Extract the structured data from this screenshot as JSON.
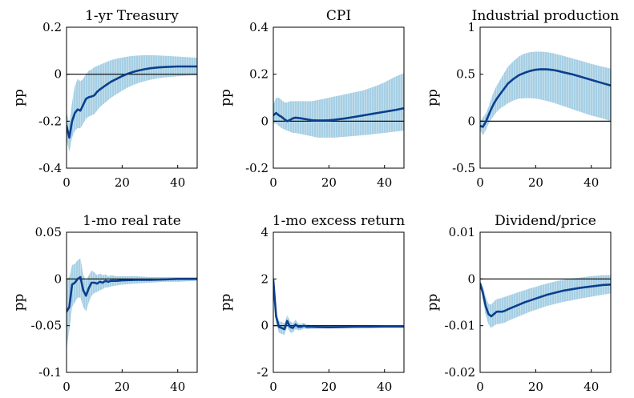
{
  "chart_data": [
    {
      "type": "line",
      "title": "1-yr Treasury",
      "ylabel": "pp",
      "xlim": [
        0,
        47
      ],
      "ylim": [
        -0.4,
        0.2
      ],
      "xticks": [
        0,
        20,
        40
      ],
      "xtick_labels": [
        "0",
        "20",
        "40"
      ],
      "yticks": [
        -0.4,
        -0.2,
        0,
        0.2
      ],
      "ytick_labels": [
        "-0.4",
        "-0.2",
        "0",
        "0.2"
      ],
      "zero_line": true,
      "series": [
        {
          "x": [
            0,
            1,
            2,
            3,
            4,
            5,
            6,
            7,
            8,
            9,
            10,
            11,
            12,
            14,
            16,
            18,
            20,
            22,
            24,
            26,
            28,
            30,
            33,
            36,
            40,
            44,
            47
          ],
          "values": [
            -0.22,
            -0.27,
            -0.2,
            -0.165,
            -0.15,
            -0.155,
            -0.13,
            -0.105,
            -0.098,
            -0.095,
            -0.09,
            -0.075,
            -0.065,
            -0.048,
            -0.032,
            -0.02,
            -0.008,
            0.002,
            0.01,
            0.016,
            0.021,
            0.025,
            0.029,
            0.031,
            0.033,
            0.033,
            0.033
          ],
          "lower": [
            -0.28,
            -0.33,
            -0.27,
            -0.24,
            -0.23,
            -0.23,
            -0.21,
            -0.19,
            -0.18,
            -0.175,
            -0.17,
            -0.155,
            -0.14,
            -0.12,
            -0.1,
            -0.085,
            -0.07,
            -0.057,
            -0.046,
            -0.037,
            -0.03,
            -0.024,
            -0.017,
            -0.013,
            -0.009,
            -0.006,
            -0.005
          ],
          "upper": [
            -0.16,
            -0.21,
            -0.12,
            -0.05,
            -0.02,
            -0.03,
            -0.02,
            0.0,
            0.015,
            0.02,
            0.03,
            0.035,
            0.04,
            0.05,
            0.06,
            0.066,
            0.071,
            0.075,
            0.078,
            0.08,
            0.081,
            0.081,
            0.08,
            0.078,
            0.075,
            0.072,
            0.07
          ]
        }
      ]
    },
    {
      "type": "line",
      "title": "CPI",
      "ylabel": "pp",
      "xlim": [
        0,
        47
      ],
      "ylim": [
        -0.2,
        0.4
      ],
      "xticks": [
        0,
        20,
        40
      ],
      "xtick_labels": [
        "0",
        "20",
        "40"
      ],
      "yticks": [
        -0.2,
        0,
        0.2,
        0.4
      ],
      "ytick_labels": [
        "-0.2",
        "0",
        "0.2",
        "0.4"
      ],
      "zero_line": true,
      "series": [
        {
          "x": [
            0,
            1,
            2,
            3,
            4,
            5,
            6,
            7,
            8,
            10,
            12,
            14,
            16,
            18,
            20,
            22,
            24,
            26,
            28,
            30,
            32,
            34,
            36,
            38,
            40,
            42,
            44,
            47
          ],
          "values": [
            0.025,
            0.035,
            0.025,
            0.018,
            0.008,
            0.0,
            0.005,
            0.012,
            0.015,
            0.012,
            0.008,
            0.004,
            0.003,
            0.003,
            0.004,
            0.006,
            0.009,
            0.012,
            0.016,
            0.02,
            0.024,
            0.028,
            0.032,
            0.036,
            0.04,
            0.044,
            0.048,
            0.055
          ],
          "lower": [
            -0.01,
            -0.01,
            -0.02,
            -0.03,
            -0.035,
            -0.04,
            -0.045,
            -0.05,
            -0.05,
            -0.055,
            -0.06,
            -0.065,
            -0.07,
            -0.07,
            -0.07,
            -0.07,
            -0.068,
            -0.066,
            -0.064,
            -0.062,
            -0.06,
            -0.058,
            -0.055,
            -0.052,
            -0.05,
            -0.047,
            -0.044,
            -0.04
          ],
          "upper": [
            0.07,
            0.1,
            0.1,
            0.09,
            0.08,
            0.08,
            0.085,
            0.085,
            0.085,
            0.085,
            0.085,
            0.085,
            0.09,
            0.095,
            0.1,
            0.105,
            0.11,
            0.115,
            0.12,
            0.125,
            0.13,
            0.138,
            0.146,
            0.155,
            0.165,
            0.178,
            0.19,
            0.205
          ]
        }
      ]
    },
    {
      "type": "line",
      "title": "Industrial production",
      "ylabel": "pp",
      "xlim": [
        0,
        47
      ],
      "ylim": [
        -0.5,
        1
      ],
      "xticks": [
        0,
        20,
        40
      ],
      "xtick_labels": [
        "0",
        "20",
        "40"
      ],
      "yticks": [
        -0.5,
        0,
        0.5,
        1
      ],
      "ytick_labels": [
        "-0.5",
        "0",
        "0.5",
        "1"
      ],
      "zero_line": true,
      "series": [
        {
          "x": [
            0,
            1,
            2,
            3,
            4,
            5,
            6,
            7,
            8,
            9,
            10,
            12,
            14,
            16,
            18,
            20,
            22,
            24,
            26,
            28,
            30,
            33,
            36,
            40,
            44,
            47
          ],
          "values": [
            -0.05,
            -0.06,
            -0.01,
            0.06,
            0.13,
            0.19,
            0.24,
            0.28,
            0.32,
            0.36,
            0.4,
            0.45,
            0.49,
            0.515,
            0.535,
            0.548,
            0.553,
            0.552,
            0.546,
            0.535,
            0.52,
            0.5,
            0.475,
            0.44,
            0.405,
            0.38
          ],
          "lower": [
            -0.1,
            -0.15,
            -0.1,
            -0.03,
            0.02,
            0.06,
            0.1,
            0.13,
            0.15,
            0.17,
            0.19,
            0.22,
            0.24,
            0.245,
            0.245,
            0.24,
            0.23,
            0.215,
            0.2,
            0.18,
            0.16,
            0.13,
            0.1,
            0.06,
            0.03,
            0.0
          ],
          "upper": [
            0.0,
            0.04,
            0.08,
            0.15,
            0.24,
            0.32,
            0.38,
            0.43,
            0.48,
            0.53,
            0.58,
            0.64,
            0.69,
            0.72,
            0.735,
            0.74,
            0.74,
            0.735,
            0.725,
            0.71,
            0.695,
            0.67,
            0.645,
            0.61,
            0.58,
            0.56
          ]
        }
      ]
    },
    {
      "type": "line",
      "title": "1-mo real rate",
      "ylabel": "pp",
      "xlim": [
        0,
        47
      ],
      "ylim": [
        -0.1,
        0.05
      ],
      "xticks": [
        0,
        20,
        40
      ],
      "xtick_labels": [
        "0",
        "20",
        "40"
      ],
      "yticks": [
        -0.1,
        -0.05,
        0,
        0.05
      ],
      "ytick_labels": [
        "-0.1",
        "-0.05",
        "0",
        "0.05"
      ],
      "zero_line": true,
      "series": [
        {
          "x": [
            0,
            1,
            2,
            3,
            4,
            5,
            6,
            7,
            8,
            9,
            10,
            11,
            12,
            13,
            14,
            15,
            16,
            18,
            20,
            25,
            30,
            35,
            40,
            47
          ],
          "values": [
            -0.035,
            -0.03,
            -0.006,
            -0.004,
            0.0,
            0.002,
            -0.012,
            -0.018,
            -0.01,
            -0.004,
            -0.004,
            -0.005,
            -0.003,
            -0.004,
            -0.002,
            -0.003,
            -0.002,
            -0.002,
            -0.0015,
            -0.001,
            -0.001,
            -0.0005,
            0.0,
            0.0
          ],
          "lower": [
            -0.075,
            -0.055,
            -0.03,
            -0.025,
            -0.02,
            -0.02,
            -0.03,
            -0.035,
            -0.025,
            -0.018,
            -0.015,
            -0.014,
            -0.012,
            -0.011,
            -0.009,
            -0.009,
            -0.008,
            -0.007,
            -0.006,
            -0.005,
            -0.004,
            -0.003,
            -0.003,
            -0.002
          ],
          "upper": [
            0.0,
            0.002,
            0.015,
            0.016,
            0.02,
            0.022,
            0.005,
            -0.002,
            0.004,
            0.009,
            0.007,
            0.004,
            0.006,
            0.004,
            0.005,
            0.003,
            0.004,
            0.003,
            0.003,
            0.003,
            0.002,
            0.002,
            0.002,
            0.002
          ]
        }
      ]
    },
    {
      "type": "line",
      "title": "1-mo excess return",
      "ylabel": "pp",
      "xlim": [
        0,
        47
      ],
      "ylim": [
        -2,
        4
      ],
      "xticks": [
        0,
        20,
        40
      ],
      "xtick_labels": [
        "0",
        "20",
        "40"
      ],
      "yticks": [
        -2,
        0,
        2,
        4
      ],
      "ytick_labels": [
        "-2",
        "0",
        "2",
        "4"
      ],
      "zero_line": true,
      "series": [
        {
          "x": [
            0,
            1,
            2,
            3,
            4,
            5,
            6,
            7,
            8,
            9,
            10,
            11,
            12,
            14,
            16,
            20,
            25,
            30,
            35,
            40,
            47
          ],
          "values": [
            1.95,
            0.4,
            -0.05,
            -0.1,
            -0.15,
            0.2,
            -0.05,
            -0.1,
            0.05,
            -0.05,
            -0.05,
            0.0,
            -0.05,
            -0.05,
            -0.06,
            -0.07,
            -0.06,
            -0.05,
            -0.05,
            -0.04,
            -0.04
          ],
          "lower": [
            1.7,
            0.15,
            -0.3,
            -0.35,
            -0.4,
            -0.05,
            -0.3,
            -0.3,
            -0.15,
            -0.2,
            -0.18,
            -0.12,
            -0.15,
            -0.13,
            -0.12,
            -0.12,
            -0.1,
            -0.09,
            -0.08,
            -0.08,
            -0.07
          ],
          "upper": [
            2.15,
            0.65,
            0.2,
            0.15,
            0.1,
            0.45,
            0.2,
            0.1,
            0.25,
            0.1,
            0.08,
            0.12,
            0.05,
            0.03,
            0.0,
            -0.02,
            -0.02,
            -0.01,
            -0.01,
            0.0,
            0.0
          ]
        }
      ]
    },
    {
      "type": "line",
      "title": "Dividend/price",
      "ylabel": "pp",
      "xlim": [
        0,
        47
      ],
      "ylim": [
        -0.02,
        0.01
      ],
      "xticks": [
        0,
        20,
        40
      ],
      "xtick_labels": [
        "0",
        "20",
        "40"
      ],
      "yticks": [
        -0.02,
        -0.01,
        0,
        0.01
      ],
      "ytick_labels": [
        "-0.02",
        "-0.01",
        "0",
        "0.01"
      ],
      "zero_line": true,
      "series": [
        {
          "x": [
            0,
            1,
            2,
            3,
            4,
            5,
            6,
            7,
            8,
            9,
            10,
            12,
            14,
            16,
            18,
            20,
            22,
            24,
            26,
            28,
            30,
            33,
            36,
            40,
            44,
            47
          ],
          "values": [
            -0.001,
            -0.003,
            -0.0058,
            -0.0075,
            -0.008,
            -0.0075,
            -0.007,
            -0.007,
            -0.007,
            -0.0068,
            -0.0065,
            -0.006,
            -0.0055,
            -0.005,
            -0.0046,
            -0.0042,
            -0.0038,
            -0.0034,
            -0.0031,
            -0.0028,
            -0.0025,
            -0.0022,
            -0.0019,
            -0.0016,
            -0.0013,
            -0.0012
          ],
          "lower": [
            -0.0015,
            -0.0045,
            -0.0078,
            -0.0097,
            -0.0105,
            -0.01,
            -0.0097,
            -0.0096,
            -0.0095,
            -0.0093,
            -0.009,
            -0.0085,
            -0.008,
            -0.0075,
            -0.007,
            -0.0066,
            -0.0062,
            -0.0058,
            -0.0055,
            -0.0052,
            -0.0049,
            -0.0046,
            -0.0042,
            -0.0038,
            -0.0034,
            -0.0031
          ],
          "upper": [
            -0.0005,
            -0.0015,
            -0.0038,
            -0.0053,
            -0.0055,
            -0.0048,
            -0.0043,
            -0.0042,
            -0.004,
            -0.0038,
            -0.0036,
            -0.0032,
            -0.0028,
            -0.0024,
            -0.002,
            -0.0017,
            -0.0013,
            -0.001,
            -0.0007,
            -0.0004,
            -0.0002,
            0.0001,
            0.0003,
            0.0006,
            0.0008,
            0.0008
          ]
        }
      ]
    }
  ],
  "colors": {
    "line": "#0b3f8c",
    "band": "#a6cfe4",
    "band_hatch": "#c9e2ef",
    "axis": "#000000"
  }
}
